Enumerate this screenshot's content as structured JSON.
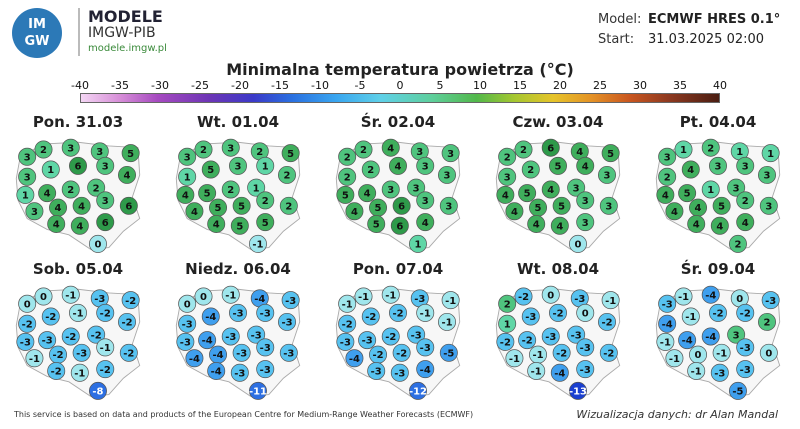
{
  "branding": {
    "logo_text_top": "IM",
    "logo_text_bottom": "GW",
    "name": "MODELE",
    "org": "IMGW-PIB",
    "url": "modele.imgw.pl"
  },
  "meta": {
    "model_label": "Model:",
    "model_value": "ECMWF HRES 0.1°",
    "start_label": "Start:",
    "start_value": "31.03.2025 02:00"
  },
  "title": "Minimalna temperatura powietrza (°C)",
  "scale": {
    "ticks": [
      "-40",
      "-35",
      "-30",
      "-25",
      "-20",
      "-15",
      "-10",
      "-5",
      "0",
      "5",
      "10",
      "15",
      "20",
      "25",
      "30",
      "35",
      "40"
    ]
  },
  "days": [
    {
      "label": "Pon. 31.03",
      "values": [
        "3",
        "2",
        "3",
        "3",
        "5",
        "3",
        "1",
        "6",
        "3",
        "4",
        "1",
        "4",
        "2",
        "2",
        "3",
        "4",
        "4",
        "3",
        "6",
        "4",
        "4",
        "6",
        "0"
      ]
    },
    {
      "label": "Wt. 01.04",
      "values": [
        "3",
        "2",
        "3",
        "2",
        "5",
        "1",
        "5",
        "3",
        "1",
        "2",
        "4",
        "5",
        "2",
        "1",
        "4",
        "5",
        "5",
        "2",
        "2",
        "4",
        "5",
        "5",
        "-1"
      ]
    },
    {
      "label": "Śr. 02.04",
      "values": [
        "2",
        "2",
        "4",
        "3",
        "3",
        "2",
        "2",
        "4",
        "3",
        "3",
        "5",
        "4",
        "3",
        "3",
        "4",
        "5",
        "6",
        "3",
        "3",
        "5",
        "6",
        "4",
        "1"
      ]
    },
    {
      "label": "Czw. 03.04",
      "values": [
        "2",
        "2",
        "6",
        "4",
        "5",
        "3",
        "2",
        "5",
        "4",
        "3",
        "4",
        "5",
        "4",
        "3",
        "4",
        "5",
        "5",
        "3",
        "3",
        "4",
        "4",
        "3",
        "0"
      ]
    },
    {
      "label": "Pt. 04.04",
      "values": [
        "3",
        "1",
        "2",
        "1",
        "1",
        "2",
        "4",
        "3",
        "3",
        "3",
        "4",
        "5",
        "1",
        "3",
        "4",
        "4",
        "5",
        "2",
        "3",
        "4",
        "4",
        "4",
        "2"
      ]
    },
    {
      "label": "Sob. 05.04",
      "values": [
        "0",
        "0",
        "-1",
        "-3",
        "-2",
        "-2",
        "-2",
        "-1",
        "-2",
        "-2",
        "-3",
        "-3",
        "-2",
        "-2",
        "-1",
        "-2",
        "-3",
        "-1",
        "-2",
        "-2",
        "-1",
        "-2",
        "-8"
      ]
    },
    {
      "label": "Niedz. 06.04",
      "values": [
        "0",
        "0",
        "-1",
        "-4",
        "-3",
        "-3",
        "-4",
        "-3",
        "-3",
        "-3",
        "-3",
        "-4",
        "-3",
        "-3",
        "-4",
        "-4",
        "-3",
        "-3",
        "-3",
        "-4",
        "-3",
        "-3",
        "-11"
      ]
    },
    {
      "label": "Pon. 07.04",
      "values": [
        "-1",
        "-1",
        "-1",
        "-3",
        "-1",
        "-2",
        "-2",
        "-2",
        "-1",
        "-1",
        "-3",
        "-3",
        "-2",
        "-3",
        "-4",
        "-2",
        "-2",
        "-3",
        "-5",
        "-3",
        "-3",
        "-4",
        "-12"
      ]
    },
    {
      "label": "Wt. 08.04",
      "values": [
        "2",
        "-2",
        "0",
        "-3",
        "-1",
        "1",
        "-3",
        "-2",
        "0",
        "-2",
        "-2",
        "-2",
        "-3",
        "-3",
        "-1",
        "-1",
        "-2",
        "-3",
        "-2",
        "-1",
        "-4",
        "-3",
        "-13"
      ]
    },
    {
      "label": "Śr. 09.04",
      "values": [
        "-3",
        "-1",
        "-4",
        "0",
        "-3",
        "-4",
        "-1",
        "-2",
        "-2",
        "2",
        "-1",
        "-4",
        "-4",
        "3",
        "-1",
        "0",
        "-1",
        "-3",
        "0",
        "-1",
        "-3",
        "-3",
        "-5"
      ]
    }
  ],
  "footer": "This service is based on data and products of the European Centre for Medium-Range Weather Forecasts (ECMWF)",
  "author": "Wizualizacja danych: dr Alan Mandal"
}
